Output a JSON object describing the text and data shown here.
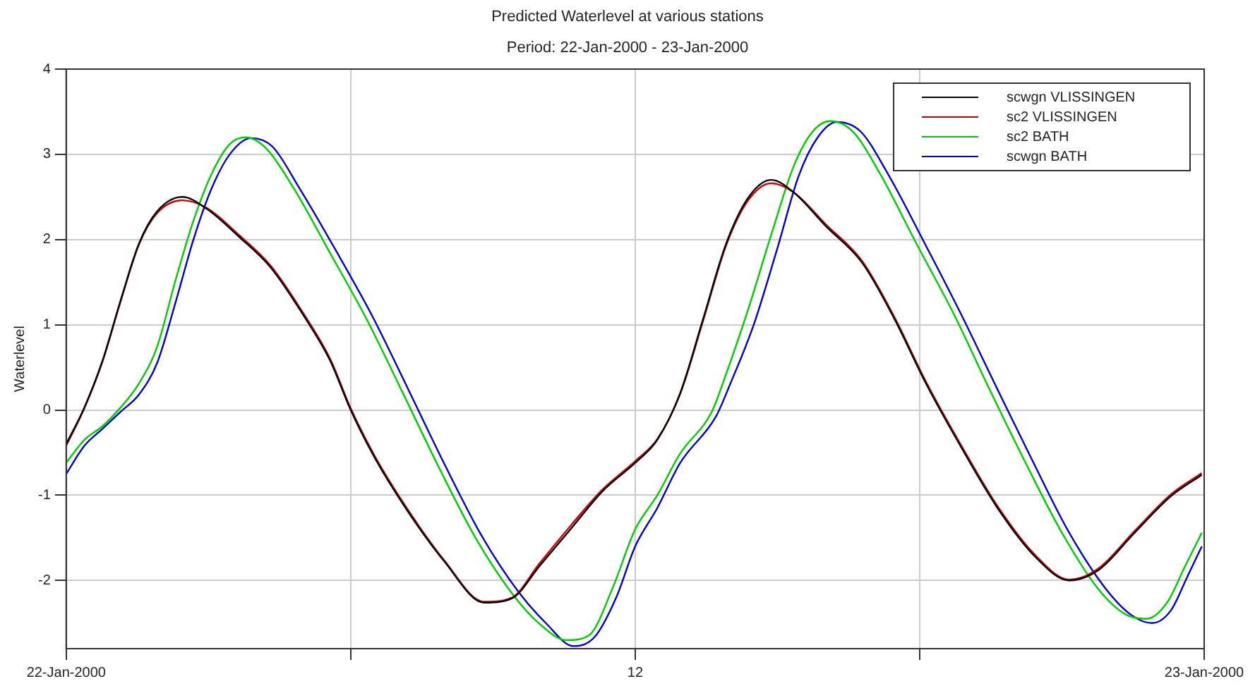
{
  "chart_data": {
    "type": "line",
    "title": "Predicted Waterlevel at various stations",
    "subtitle": "Period: 22-Jan-2000 - 23-Jan-2000",
    "ylabel": "Waterlevel",
    "xlim": [
      "2000-01-22T00:00",
      "2000-01-23T00:00"
    ],
    "xticks": [
      {
        "value": "2000-01-22T00:00",
        "label": "22-Jan-2000"
      },
      {
        "value": "2000-01-22T06:00",
        "label": null
      },
      {
        "value": "2000-01-22T12:00",
        "label": "12"
      },
      {
        "value": "2000-01-22T18:00",
        "label": null
      },
      {
        "value": "2000-01-23T00:00",
        "label": "23-Jan-2000"
      }
    ],
    "ylim": [
      -2.8,
      4
    ],
    "yticks": [
      -2,
      -1,
      0,
      1,
      2,
      3,
      4
    ],
    "grid": true,
    "legend": "top right",
    "marker": "none",
    "line_style": "solid",
    "x": [
      "2000-01-22T00:00",
      "2000-01-22T00:23",
      "2000-01-22T00:46",
      "2000-01-22T01:09",
      "2000-01-22T01:32",
      "2000-01-22T01:55",
      "2000-01-22T02:27",
      "2000-01-22T02:58",
      "2000-01-22T03:39",
      "2000-01-22T04:19",
      "2000-01-22T04:59",
      "2000-01-22T05:34",
      "2000-01-22T06:00",
      "2000-01-22T06:31",
      "2000-01-22T07:11",
      "2000-01-22T07:58",
      "2000-01-22T08:49",
      "2000-01-22T09:24",
      "2000-01-22T09:59",
      "2000-01-22T10:39",
      "2000-01-22T11:19",
      "2000-01-22T12:00",
      "2000-01-22T12:28",
      "2000-01-22T12:57",
      "2000-01-22T13:26",
      "2000-01-22T13:55",
      "2000-01-22T14:23",
      "2000-01-22T14:52",
      "2000-01-22T15:21",
      "2000-01-22T16:01",
      "2000-01-22T16:47",
      "2000-01-22T17:28",
      "2000-01-22T18:08",
      "2000-01-22T18:54",
      "2000-01-22T19:40",
      "2000-01-22T20:26",
      "2000-01-22T21:09",
      "2000-01-22T21:46",
      "2000-01-22T22:32",
      "2000-01-22T23:18",
      "2000-01-22T23:57"
    ],
    "series": [
      {
        "name": "scwgn VLISSINGEN",
        "color": "#000000",
        "values": [
          -0.4,
          0.03,
          0.58,
          1.29,
          1.95,
          2.33,
          2.5,
          2.36,
          2.03,
          1.67,
          1.13,
          0.58,
          0,
          -0.57,
          -1.17,
          -1.77,
          -2.26,
          -2.21,
          -1.83,
          -1.39,
          -0.95,
          -0.62,
          -0.35,
          0.2,
          1.07,
          1.95,
          2.49,
          2.7,
          2.55,
          2.16,
          1.73,
          1.07,
          0.31,
          -0.46,
          -1.17,
          -1.72,
          -2.0,
          -1.88,
          -1.44,
          -1.01,
          -0.76
        ]
      },
      {
        "name": "sc2 VLISSINGEN",
        "color": "#cc0000",
        "values": [
          -0.42,
          0.02,
          0.57,
          1.28,
          1.94,
          2.31,
          2.46,
          2.37,
          2.05,
          1.69,
          1.15,
          0.6,
          0.02,
          -0.55,
          -1.15,
          -1.76,
          -2.25,
          -2.2,
          -1.8,
          -1.35,
          -0.93,
          -0.6,
          -0.34,
          0.19,
          1.05,
          1.93,
          2.46,
          2.66,
          2.55,
          2.18,
          1.75,
          1.09,
          0.33,
          -0.44,
          -1.15,
          -1.7,
          -1.99,
          -1.86,
          -1.42,
          -0.99,
          -0.74
        ]
      },
      {
        "name": "sc2 BATH",
        "color": "#00cc00",
        "x": [
          "2000-01-22T00:00",
          "2000-01-22T00:23",
          "2000-01-22T00:46",
          "2000-01-22T01:09",
          "2000-01-22T01:32",
          "2000-01-22T01:55",
          "2000-01-22T02:18",
          "2000-01-22T02:41",
          "2000-01-22T03:04",
          "2000-01-22T03:27",
          "2000-01-22T03:47",
          "2000-01-22T04:13",
          "2000-01-22T04:48",
          "2000-01-22T05:34",
          "2000-01-22T06:20",
          "2000-01-22T07:06",
          "2000-01-22T07:52",
          "2000-01-22T08:38",
          "2000-01-22T09:24",
          "2000-01-22T09:59",
          "2000-01-22T10:33",
          "2000-01-22T11:02",
          "2000-01-22T11:31",
          "2000-01-22T12:00",
          "2000-01-22T12:28",
          "2000-01-22T12:57",
          "2000-01-22T13:37",
          "2000-01-22T13:55",
          "2000-01-22T14:23",
          "2000-01-22T14:52",
          "2000-01-22T15:21",
          "2000-01-22T15:44",
          "2000-01-22T16:07",
          "2000-01-22T16:36",
          "2000-01-22T17:10",
          "2000-01-22T17:56",
          "2000-01-22T18:43",
          "2000-01-22T19:28",
          "2000-01-22T20:14",
          "2000-01-22T21:00",
          "2000-01-22T21:46",
          "2000-01-22T22:21",
          "2000-01-22T22:47",
          "2000-01-22T23:13",
          "2000-01-22T23:36",
          "2000-01-22T23:57"
        ],
        "values": [
          -0.62,
          -0.35,
          -0.19,
          0.03,
          0.31,
          0.74,
          1.51,
          2.22,
          2.77,
          3.12,
          3.2,
          3.07,
          2.6,
          1.84,
          1.07,
          0.2,
          -0.68,
          -1.5,
          -2.15,
          -2.51,
          -2.7,
          -2.64,
          -2.1,
          -1.4,
          -1.0,
          -0.51,
          -0.02,
          0.42,
          1.18,
          2.05,
          2.87,
          3.26,
          3.39,
          3.26,
          2.77,
          1.95,
          1.13,
          0.25,
          -0.62,
          -1.44,
          -2.1,
          -2.4,
          -2.45,
          -2.26,
          -1.83,
          -1.44
        ]
      },
      {
        "name": "scwgn BATH",
        "color": "#0000cc",
        "x": [
          "2000-01-22T00:00",
          "2000-01-22T00:23",
          "2000-01-22T00:46",
          "2000-01-22T01:09",
          "2000-01-22T01:32",
          "2000-01-22T01:55",
          "2000-01-22T02:18",
          "2000-01-22T02:41",
          "2000-01-22T03:04",
          "2000-01-22T03:27",
          "2000-01-22T03:54",
          "2000-01-22T04:21",
          "2000-01-22T04:54",
          "2000-01-22T05:42",
          "2000-01-22T06:28",
          "2000-01-22T07:14",
          "2000-01-22T08:00",
          "2000-01-22T08:46",
          "2000-01-22T09:32",
          "2000-01-22T10:07",
          "2000-01-22T10:42",
          "2000-01-22T11:09",
          "2000-01-22T11:36",
          "2000-01-22T12:00",
          "2000-01-22T12:28",
          "2000-01-22T12:57",
          "2000-01-22T13:42",
          "2000-01-22T14:00",
          "2000-01-22T14:30",
          "2000-01-22T15:00",
          "2000-01-22T15:27",
          "2000-01-22T15:51",
          "2000-01-22T16:15",
          "2000-01-22T16:45",
          "2000-01-22T17:18",
          "2000-01-22T18:05",
          "2000-01-22T18:51",
          "2000-01-22T19:37",
          "2000-01-22T20:23",
          "2000-01-22T21:08",
          "2000-01-22T21:54",
          "2000-01-22T22:27",
          "2000-01-22T22:54",
          "2000-01-22T23:18",
          "2000-01-22T23:39",
          "2000-01-22T23:57"
        ],
        "values": [
          -0.75,
          -0.42,
          -0.22,
          -0.02,
          0.18,
          0.55,
          1.25,
          2.0,
          2.6,
          3.0,
          3.19,
          3.09,
          2.62,
          1.86,
          1.09,
          0.22,
          -0.66,
          -1.48,
          -2.13,
          -2.5,
          -2.77,
          -2.66,
          -2.2,
          -1.6,
          -1.15,
          -0.62,
          -0.08,
          0.3,
          1.0,
          1.9,
          2.75,
          3.2,
          3.38,
          3.27,
          2.8,
          1.98,
          1.15,
          0.27,
          -0.6,
          -1.42,
          -2.08,
          -2.4,
          -2.5,
          -2.35,
          -1.95,
          -1.6
        ]
      }
    ]
  }
}
